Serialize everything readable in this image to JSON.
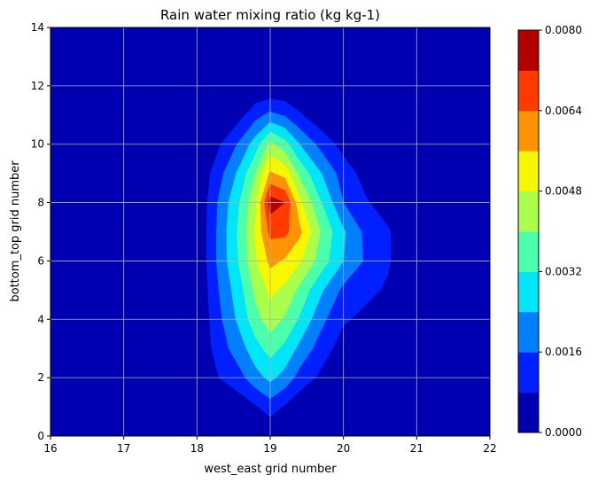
{
  "chart_data": {
    "type": "contourf",
    "title": "Rain water mixing ratio (kg kg-1)",
    "xlabel": "west_east grid number",
    "ylabel": "bottom_top grid number",
    "xlim": [
      16,
      22
    ],
    "ylim": [
      0,
      14
    ],
    "xticks": [
      "16",
      "17",
      "18",
      "19",
      "20",
      "21",
      "22"
    ],
    "yticks": [
      "0",
      "2",
      "4",
      "6",
      "8",
      "10",
      "12",
      "14"
    ],
    "grid": true,
    "colorbar": {
      "levels": [
        0.0,
        0.0008,
        0.0016,
        0.0024,
        0.0032,
        0.004,
        0.0048,
        0.0056,
        0.0064,
        0.0072,
        0.008
      ],
      "tick_labels": [
        "0.0000",
        "0.0016",
        "0.0032",
        "0.0048",
        "0.0064",
        "0.0080"
      ],
      "colors": [
        "#0000b3",
        "#0020ff",
        "#007fff",
        "#00e5f7",
        "#4cffaa",
        "#aaff4c",
        "#f7f700",
        "#ff9400",
        "#ff3b00",
        "#b30000"
      ]
    },
    "field": {
      "x": [
        16,
        17,
        18,
        18.3,
        18.6,
        18.8,
        19,
        19.2,
        19.4,
        19.7,
        20,
        20.3,
        20.6,
        21,
        22
      ],
      "y": [
        0,
        1,
        2,
        3,
        4,
        5,
        6,
        7,
        8,
        9,
        10,
        11,
        12,
        13,
        14
      ],
      "values": [
        [
          0,
          0,
          0,
          0,
          0,
          0,
          0,
          0,
          0,
          0,
          0,
          0,
          0,
          0,
          0
        ],
        [
          0,
          0,
          0,
          0.0001,
          0.0003,
          0.0007,
          0.0012,
          0.0007,
          0.0002,
          0,
          0,
          0,
          0,
          0,
          0
        ],
        [
          0,
          0,
          0,
          0.0008,
          0.0014,
          0.0021,
          0.0026,
          0.0021,
          0.0013,
          0.0006,
          0,
          0,
          0,
          0,
          0
        ],
        [
          0,
          0,
          0,
          0.0012,
          0.0021,
          0.0029,
          0.0035,
          0.003,
          0.0022,
          0.0012,
          0.0004,
          0,
          0,
          0,
          0
        ],
        [
          0,
          0,
          0,
          0.0014,
          0.0027,
          0.0037,
          0.0044,
          0.0039,
          0.0031,
          0.0018,
          0.0009,
          0.0006,
          0.0002,
          0,
          0
        ],
        [
          0,
          0,
          0,
          0.0016,
          0.003,
          0.0042,
          0.005,
          0.0046,
          0.0038,
          0.0025,
          0.0014,
          0.001,
          0.0007,
          0,
          0
        ],
        [
          0,
          0,
          0,
          0.0018,
          0.0034,
          0.0047,
          0.0058,
          0.0055,
          0.0049,
          0.0036,
          0.0024,
          0.0015,
          0.0009,
          0,
          0
        ],
        [
          0,
          0,
          0,
          0.0018,
          0.0035,
          0.0049,
          0.0066,
          0.0066,
          0.0058,
          0.0039,
          0.0025,
          0.0014,
          0.0009,
          0,
          0
        ],
        [
          0,
          0,
          0,
          0.0017,
          0.0033,
          0.0046,
          0.0076,
          0.0072,
          0.005,
          0.0032,
          0.0016,
          0.0009,
          0.0004,
          0,
          0
        ],
        [
          0,
          0,
          0,
          0.0013,
          0.0027,
          0.004,
          0.0057,
          0.0053,
          0.0038,
          0.0024,
          0.0012,
          0.0005,
          0,
          0,
          0
        ],
        [
          0,
          0,
          0,
          0.0007,
          0.0018,
          0.0028,
          0.0042,
          0.0035,
          0.0024,
          0.0013,
          0.0005,
          0,
          0,
          0,
          0
        ],
        [
          0,
          0,
          0,
          0.0001,
          0.0006,
          0.0013,
          0.0018,
          0.0015,
          0.0009,
          0.0002,
          0,
          0,
          0,
          0,
          0
        ],
        [
          0,
          0,
          0,
          0,
          0,
          0,
          0,
          0,
          0,
          0,
          0,
          0,
          0,
          0,
          0
        ],
        [
          0,
          0,
          0,
          0,
          0,
          0,
          0,
          0,
          0,
          0,
          0,
          0,
          0,
          0,
          0
        ],
        [
          0,
          0,
          0,
          0,
          0,
          0,
          0,
          0,
          0,
          0,
          0,
          0,
          0,
          0,
          0
        ]
      ]
    }
  }
}
